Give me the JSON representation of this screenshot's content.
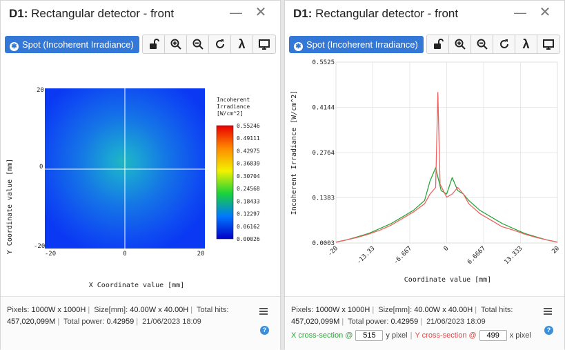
{
  "panels": [
    {
      "title_prefix": "D1:",
      "title_rest": "Rectangular detector - front",
      "spot_button": "Spot (Incoherent Irradiance)",
      "plot": {
        "xlabel": "X Coordinate value [mm]",
        "ylabel": "Y Coordinate value [mm]",
        "x_ticks": [
          "-20",
          "0",
          "20"
        ],
        "y_ticks": [
          "20",
          "0",
          "-20"
        ],
        "colorbar_title": [
          "Incoherent",
          "Irradiance",
          "[W/cm^2]"
        ],
        "colorbar_ticks": [
          "0.55246",
          "0.49111",
          "0.42975",
          "0.36839",
          "0.30704",
          "0.24568",
          "0.18433",
          "0.12297",
          "0.06162",
          "0.00026"
        ]
      },
      "footer": {
        "pixels_label": "Pixels:",
        "pixels_value": "1000W x 1000H",
        "size_label": "Size[mm]:",
        "size_value": "40.00W x 40.00H",
        "hits_label": "Total hits:",
        "hits_value": "457,020,099M",
        "power_label": "Total power:",
        "power_value": "0.42959",
        "timestamp": "21/06/2023 18:09"
      }
    },
    {
      "title_prefix": "D1:",
      "title_rest": "Rectangular detector - front",
      "spot_button": "Spot (Incoherent Irradiance)",
      "footer": {
        "pixels_label": "Pixels:",
        "pixels_value": "1000W x 1000H",
        "size_label": "Size[mm]:",
        "size_value": "40.00W x 40.00H",
        "hits_label": "Total hits:",
        "hits_value": "457,020,099M",
        "power_label": "Total power:",
        "power_value": "0.42959",
        "timestamp": "21/06/2023 18:09",
        "x_section_label": "X cross-section @",
        "x_section_value": "515",
        "x_section_unit": "y pixel",
        "y_section_label": "Y cross-section @",
        "y_section_value": "499",
        "y_section_unit": "x pixel"
      }
    }
  ],
  "colors": {
    "accent": "#3378d6",
    "x_section": "#2aa437",
    "y_section": "#e24444"
  },
  "icons": [
    "lock-open-icon",
    "zoom-in-icon",
    "zoom-out-icon",
    "refresh-icon",
    "lambda-icon",
    "monitor-icon",
    "menu-icon",
    "help-icon",
    "close-icon",
    "minimize-icon"
  ],
  "chart_data": {
    "type": "line",
    "xlabel": "Coordinate value [mm]",
    "ylabel": "Incoherent Irradiance [W/cm^2]",
    "x_ticks": [
      "-20",
      "-13.33",
      "-6.667",
      "0",
      "6.6667",
      "13.333",
      "20"
    ],
    "y_ticks": [
      "0.5525",
      "0.4144",
      "0.2764",
      "0.1383",
      "0.0003"
    ],
    "xlim": [
      -20,
      20
    ],
    "ylim": [
      0.0003,
      0.5525
    ],
    "grid": true,
    "series": [
      {
        "color": "#2aa437",
        "x": [
          -20,
          -18,
          -16,
          -14,
          -12,
          -10,
          -8,
          -6,
          -4,
          -3,
          -2,
          -1,
          0,
          1,
          2,
          3,
          4,
          6,
          8,
          10,
          12,
          14,
          16,
          18,
          20
        ],
        "y": [
          0.003,
          0.01,
          0.02,
          0.03,
          0.045,
          0.06,
          0.08,
          0.1,
          0.13,
          0.19,
          0.23,
          0.16,
          0.15,
          0.2,
          0.16,
          0.15,
          0.13,
          0.1,
          0.08,
          0.06,
          0.045,
          0.03,
          0.02,
          0.01,
          0.003
        ]
      },
      {
        "color": "#f06060",
        "x": [
          -20,
          -18,
          -16,
          -14,
          -12,
          -10,
          -8,
          -6,
          -4,
          -3,
          -2,
          -1.6,
          -1.2,
          0,
          1,
          2,
          3,
          4,
          6,
          8,
          10,
          12,
          14,
          16,
          18,
          20
        ],
        "y": [
          0.003,
          0.01,
          0.018,
          0.028,
          0.04,
          0.055,
          0.075,
          0.095,
          0.12,
          0.15,
          0.17,
          0.46,
          0.18,
          0.14,
          0.15,
          0.17,
          0.15,
          0.12,
          0.09,
          0.07,
          0.05,
          0.04,
          0.028,
          0.018,
          0.01,
          0.003
        ]
      }
    ]
  }
}
